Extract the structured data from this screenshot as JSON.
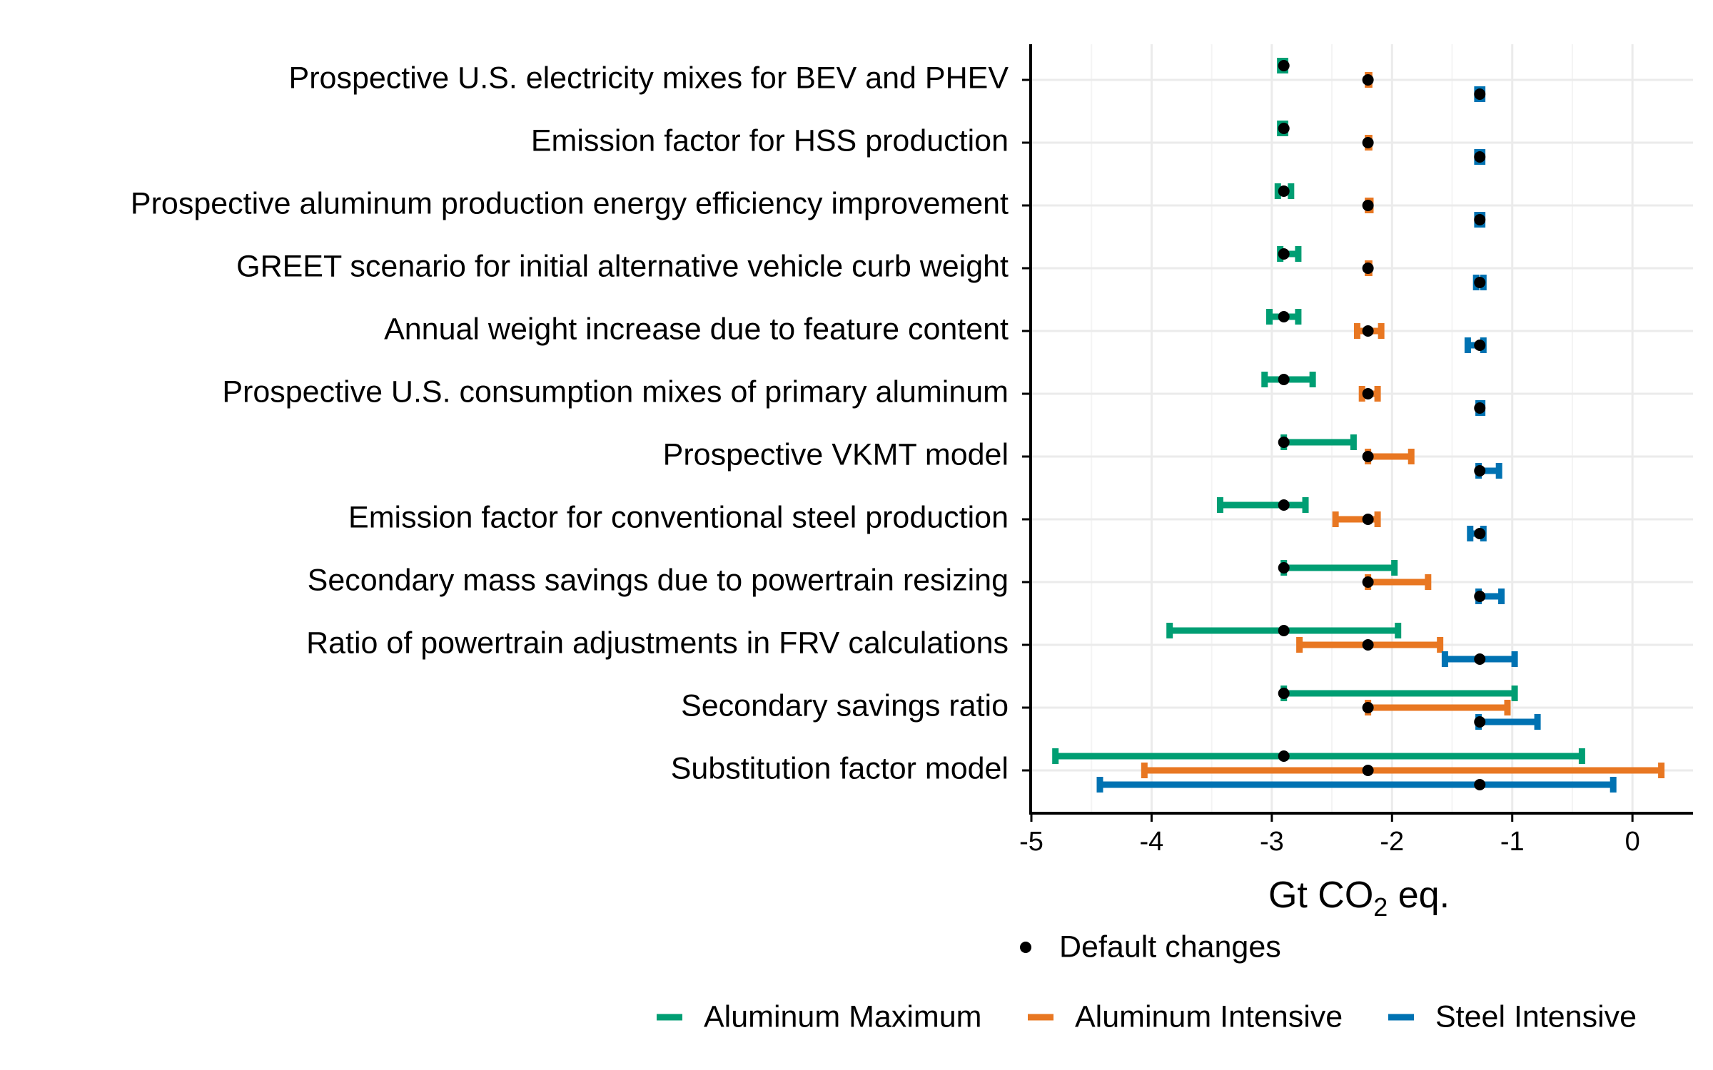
{
  "chart_data": {
    "type": "interval",
    "title": "",
    "xlabel": "Gt CO2 eq.",
    "xlabel_parts": {
      "main": "Gt CO",
      "sub": "2",
      "suffix": " eq."
    },
    "ylabel": "",
    "xlim": [
      -5.0,
      0.48
    ],
    "xticks": [
      -5,
      -4,
      -3,
      -2,
      -1,
      0
    ],
    "xtick_labels": [
      "-5",
      "-4",
      "-3",
      "-2",
      "-1",
      "0"
    ],
    "grid": true,
    "legend_position": "bottom",
    "categories": [
      "Prospective U.S. electricity mixes for BEV and PHEV",
      "Emission factor for HSS production",
      "Prospective aluminum production energy efficiency improvement",
      "GREET scenario for initial alternative vehicle curb weight",
      "Annual weight increase due to feature content",
      "Prospective U.S. consumption mixes of primary aluminum",
      "Prospective VKMT model",
      "Emission factor for conventional steel production",
      "Secondary mass savings due to powertrain resizing",
      "Ratio of powertrain adjustments in FRV calculations",
      "Secondary savings ratio",
      "Substitution factor model"
    ],
    "point_legend": "Default changes",
    "series": [
      {
        "name": "Aluminum Maximum",
        "color": "#009E73",
        "default": -2.9,
        "low": [
          -2.93,
          -2.93,
          -2.95,
          -2.93,
          -3.02,
          -3.06,
          -2.9,
          -3.43,
          -2.9,
          -3.85,
          -2.9,
          -4.8
        ],
        "high": [
          -2.89,
          -2.89,
          -2.84,
          -2.78,
          -2.78,
          -2.66,
          -2.32,
          -2.72,
          -1.98,
          -1.95,
          -0.98,
          -0.42
        ]
      },
      {
        "name": "Aluminum Intensive",
        "color": "#E87722",
        "default": -2.2,
        "low": [
          -2.2,
          -2.2,
          -2.2,
          -2.2,
          -2.29,
          -2.25,
          -2.2,
          -2.47,
          -2.2,
          -2.77,
          -2.2,
          -4.06
        ],
        "high": [
          -2.19,
          -2.19,
          -2.18,
          -2.19,
          -2.09,
          -2.12,
          -1.84,
          -2.12,
          -1.7,
          -1.6,
          -1.04,
          0.24
        ]
      },
      {
        "name": "Steel Intensive",
        "color": "#0072B2",
        "default": -1.27,
        "low": [
          -1.29,
          -1.29,
          -1.29,
          -1.3,
          -1.37,
          -1.28,
          -1.28,
          -1.35,
          -1.28,
          -1.56,
          -1.28,
          -4.43
        ],
        "high": [
          -1.25,
          -1.25,
          -1.25,
          -1.24,
          -1.24,
          -1.25,
          -1.11,
          -1.24,
          -1.09,
          -0.98,
          -0.79,
          -0.16
        ]
      }
    ]
  }
}
